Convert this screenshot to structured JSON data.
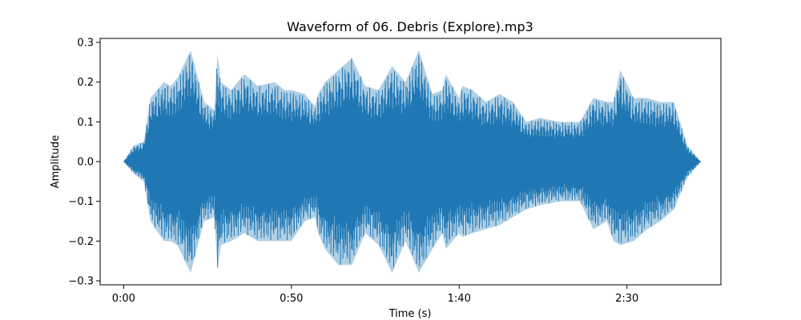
{
  "chart_data": {
    "type": "line",
    "title": "Waveform of 06. Debris (Explore).mp3",
    "xlabel": "Time (s)",
    "ylabel": "Amplitude",
    "xlim": [
      -7,
      178
    ],
    "ylim": [
      -0.31,
      0.31
    ],
    "grid": false,
    "legend": "none",
    "x_ticks": [
      {
        "value": 0,
        "label": "0:00"
      },
      {
        "value": 50,
        "label": "0:50"
      },
      {
        "value": 100,
        "label": "1:40"
      },
      {
        "value": 150,
        "label": "2:30"
      }
    ],
    "y_ticks": [
      {
        "value": 0.3,
        "label": "0.3"
      },
      {
        "value": 0.2,
        "label": "0.2"
      },
      {
        "value": 0.1,
        "label": "0.1"
      },
      {
        "value": 0.0,
        "label": "0.0"
      },
      {
        "value": -0.1,
        "label": "−0.1"
      },
      {
        "value": -0.2,
        "label": "−0.2"
      },
      {
        "value": -0.3,
        "label": "−0.3"
      }
    ],
    "series": [
      {
        "color": "#1f77b4",
        "x": [
          0,
          3,
          6,
          8,
          12,
          14,
          16,
          20,
          24,
          27,
          28,
          29,
          32,
          36,
          40,
          45,
          48,
          50,
          54,
          57,
          58,
          60,
          64,
          68,
          72,
          76,
          80,
          84,
          88,
          92,
          95,
          96,
          100,
          101,
          104,
          108,
          112,
          116,
          120,
          124,
          130,
          136,
          140,
          144,
          146,
          148,
          152,
          156,
          160,
          164,
          168,
          170,
          172
        ],
        "upper": [
          0.0,
          0.04,
          0.05,
          0.16,
          0.2,
          0.19,
          0.21,
          0.28,
          0.15,
          0.13,
          0.27,
          0.2,
          0.18,
          0.22,
          0.19,
          0.2,
          0.18,
          0.18,
          0.17,
          0.14,
          0.17,
          0.2,
          0.23,
          0.26,
          0.19,
          0.18,
          0.24,
          0.2,
          0.28,
          0.17,
          0.18,
          0.22,
          0.16,
          0.19,
          0.18,
          0.15,
          0.17,
          0.15,
          0.1,
          0.11,
          0.1,
          0.1,
          0.16,
          0.15,
          0.15,
          0.23,
          0.16,
          0.16,
          0.15,
          0.15,
          0.04,
          0.02,
          0.0
        ],
        "lower": [
          0.0,
          -0.03,
          -0.05,
          -0.15,
          -0.2,
          -0.2,
          -0.21,
          -0.28,
          -0.15,
          -0.14,
          -0.27,
          -0.21,
          -0.2,
          -0.18,
          -0.2,
          -0.2,
          -0.2,
          -0.2,
          -0.15,
          -0.14,
          -0.18,
          -0.22,
          -0.26,
          -0.26,
          -0.18,
          -0.21,
          -0.28,
          -0.2,
          -0.28,
          -0.22,
          -0.18,
          -0.22,
          -0.18,
          -0.19,
          -0.18,
          -0.17,
          -0.16,
          -0.14,
          -0.12,
          -0.11,
          -0.1,
          -0.1,
          -0.17,
          -0.15,
          -0.2,
          -0.21,
          -0.2,
          -0.17,
          -0.15,
          -0.12,
          -0.04,
          -0.02,
          0.0
        ]
      }
    ]
  }
}
